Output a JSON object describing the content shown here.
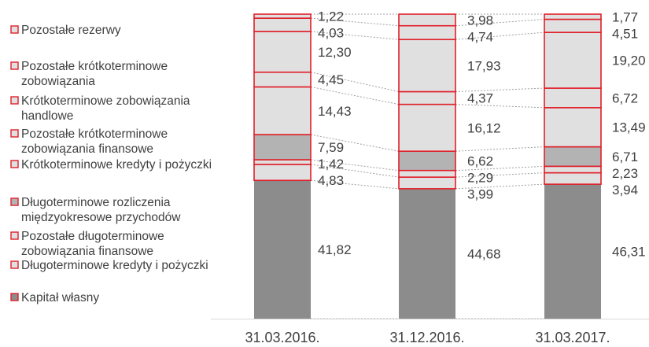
{
  "chart_data": {
    "type": "bar",
    "stacked": true,
    "percent_stacked": true,
    "categories": [
      "31.03.2016.",
      "31.12.2016.",
      "31.03.2017."
    ],
    "series": [
      {
        "name": "Kapitał własny",
        "values": [
          "41,82",
          "44,68",
          "46,31"
        ],
        "style": "dark"
      },
      {
        "name": "Długoterminowe kredyty i pożyczki",
        "values": [
          "4,83",
          "3,99",
          "3,94"
        ],
        "style": "light"
      },
      {
        "name": "Pozostałe długoterminowe zobowiązania finansowe",
        "values": [
          "1,42",
          "2,29",
          "2,23"
        ],
        "style": "light"
      },
      {
        "name": "Długoterminowe rozliczenia międzyokresowe przychodów",
        "values": [
          "7,59",
          "6,62",
          "6,71"
        ],
        "style": "medium"
      },
      {
        "name": "Krótkoterminowe kredyty i pożyczki",
        "values": [
          "14,43",
          "16,12",
          "13,49"
        ],
        "style": "light"
      },
      {
        "name": "Pozostałe krótkoterminowe zobowiązania finansowe",
        "values": [
          "4,45",
          "4,37",
          "6,72"
        ],
        "style": "light"
      },
      {
        "name": "Krótkoterminowe zobowiązania handlowe",
        "values": [
          "12,30",
          "17,93",
          "19,20"
        ],
        "style": "light"
      },
      {
        "name": "Pozostałe krótkoterminowe zobowiązania",
        "values": [
          "4,03",
          "4,74",
          "4,51"
        ],
        "style": "light"
      },
      {
        "name": "Pozostałe rezerwy",
        "values": [
          "1,22",
          "3,98",
          "1,77"
        ],
        "style": "light"
      }
    ],
    "legend_order_top_to_bottom": [
      "Pozostałe rezerwy",
      "Pozostałe krótkoterminowe zobowiązania",
      "Krótkoterminowe zobowiązania handlowe",
      "Pozostałe krótkoterminowe zobowiązania finansowe",
      "Krótkoterminowe kredyty i pożyczki",
      "Długoterminowe rozliczenia międzyokresowe przychodów",
      "Pozostałe długoterminowe zobowiązania finansowe",
      "Długoterminowe kredyty i pożyczki",
      "Kapitał własny"
    ],
    "legend_lines": [
      [
        "Pozostałe rezerwy"
      ],
      [
        "Pozostałe krótkoterminowe",
        "zobowiązania"
      ],
      [
        "Krótkoterminowe zobowiązania",
        "handlowe"
      ],
      [
        "Pozostałe krótkoterminowe",
        "zobowiązania finansowe"
      ],
      [
        "Krótkoterminowe kredyty i pożyczki"
      ],
      [
        "Długoterminowe rozliczenia",
        "międzyokresowe przychodów"
      ],
      [
        "Pozostałe długoterminowe",
        "zobowiązania finansowe"
      ],
      [
        "Długoterminowe kredyty i pożyczki"
      ],
      [
        "Kapitał własny"
      ]
    ],
    "legend_position": "left",
    "colors": {
      "dark": "#8c8c8c",
      "medium": "#b3b3b3",
      "light": "#e0e0e0",
      "border": "#e0202a",
      "text": "#404040",
      "connector": "#a0a0a0"
    },
    "grid": false,
    "connector_lines": true
  }
}
